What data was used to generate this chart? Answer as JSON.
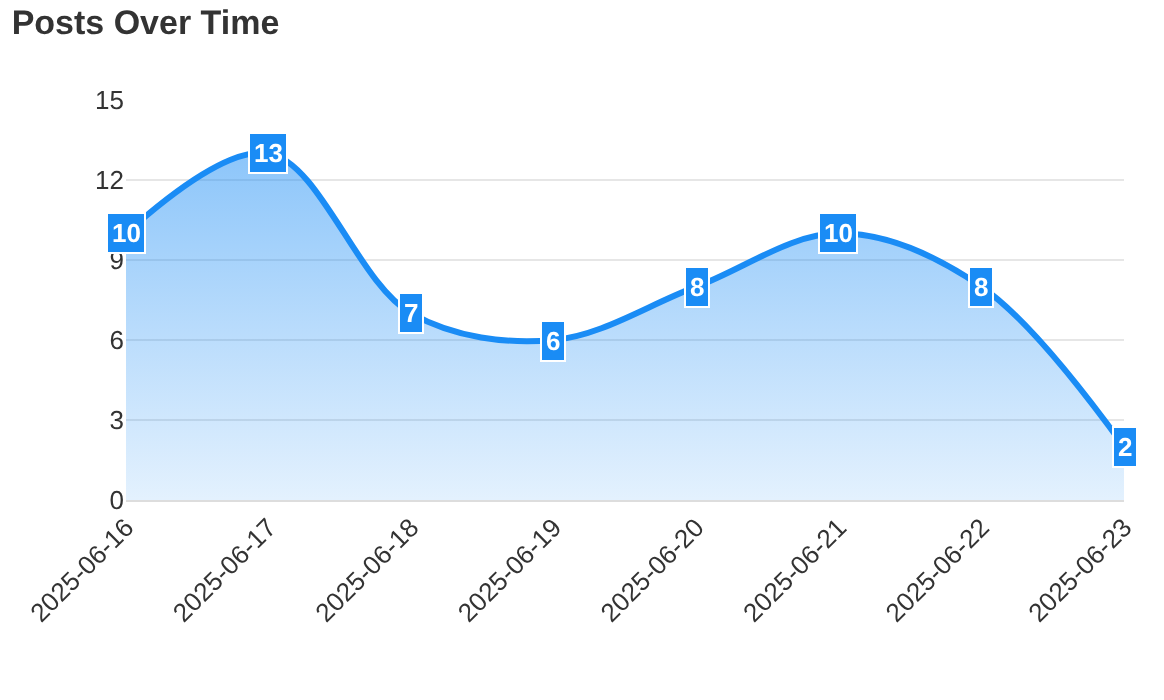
{
  "chart_data": {
    "type": "area",
    "title": "Posts Over Time",
    "categories": [
      "2025-06-16",
      "2025-06-17",
      "2025-06-18",
      "2025-06-19",
      "2025-06-20",
      "2025-06-21",
      "2025-06-22",
      "2025-06-23"
    ],
    "values": [
      10,
      13,
      7,
      6,
      8,
      10,
      8,
      2
    ],
    "color": "#1a8cf5",
    "ylim": [
      0,
      15
    ],
    "yticks": [
      0,
      3,
      6,
      9,
      12,
      15
    ],
    "grid": "y",
    "data_labels": true,
    "legend": false
  }
}
